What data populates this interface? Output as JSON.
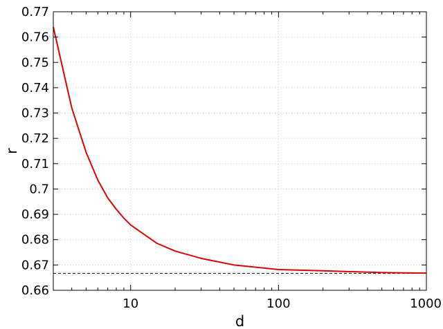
{
  "chart_data": {
    "type": "line",
    "xlabel": "d",
    "ylabel": "r",
    "x_scale": "log",
    "xlim": [
      3,
      1000
    ],
    "ylim": [
      0.66,
      0.77
    ],
    "grid": true,
    "legend": "none",
    "x_ticks": [
      {
        "value": 10,
        "label": "10"
      },
      {
        "value": 100,
        "label": "100"
      },
      {
        "value": 1000,
        "label": "1000"
      }
    ],
    "y_ticks": [
      {
        "value": 0.66,
        "label": "0.66"
      },
      {
        "value": 0.67,
        "label": "0.67"
      },
      {
        "value": 0.68,
        "label": "0.68"
      },
      {
        "value": 0.69,
        "label": "0.69"
      },
      {
        "value": 0.7,
        "label": "0.7"
      },
      {
        "value": 0.71,
        "label": "0.71"
      },
      {
        "value": 0.72,
        "label": "0.72"
      },
      {
        "value": 0.73,
        "label": "0.73"
      },
      {
        "value": 0.74,
        "label": "0.74"
      },
      {
        "value": 0.75,
        "label": "0.75"
      },
      {
        "value": 0.76,
        "label": "0.76"
      },
      {
        "value": 0.77,
        "label": "0.77"
      }
    ],
    "series": [
      {
        "color": "#e00000",
        "style": "solid",
        "x": [
          3,
          4,
          5,
          6,
          7,
          8,
          9,
          10,
          15,
          20,
          30,
          50,
          100,
          200,
          500,
          1000
        ],
        "y": [
          0.764,
          0.732,
          0.7145,
          0.7035,
          0.6965,
          0.692,
          0.6885,
          0.6858,
          0.6786,
          0.6755,
          0.6726,
          0.67,
          0.6682,
          0.6677,
          0.667,
          0.6668
        ]
      }
    ],
    "reference_lines": [
      {
        "orientation": "horizontal",
        "y": 0.6667,
        "color": "#000000",
        "style": "dashed"
      }
    ]
  },
  "colors": {
    "frame": "#000000",
    "grid": "#c8c8c8",
    "background": "#ffffff"
  }
}
